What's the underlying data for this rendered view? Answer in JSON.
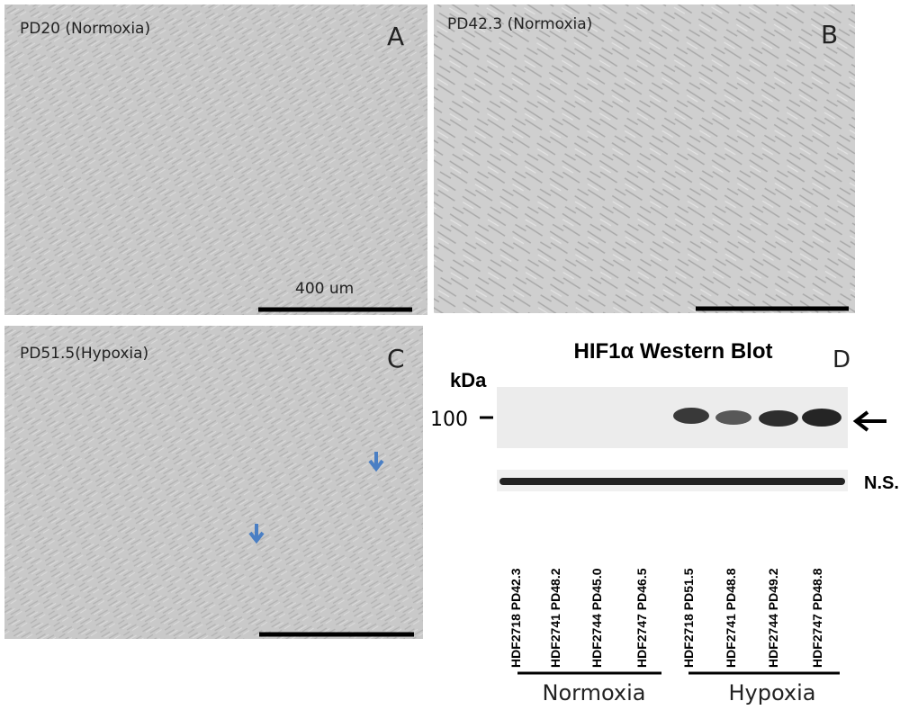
{
  "panels": [
    {
      "caption": "PD20 (Normoxia)",
      "letter": "A",
      "scale_label": "400 um"
    },
    {
      "caption": "PD42.3 (Normoxia)",
      "letter": "B"
    },
    {
      "caption": "PD51.5(Hypoxia)",
      "letter": "C"
    }
  ],
  "blot": {
    "title": "HIF1α Western Blot",
    "letter": "D",
    "unit": "kDa",
    "marker": "100",
    "ns_label": "N.S.",
    "lanes": [
      "HDF2718 PD42.3",
      "HDF2741 PD48.2",
      "HDF2744 PD45.0",
      "HDF2747 PD46.5",
      "HDF2718 PD51.5",
      "HDF2741 PD48.8",
      "HDF2744 PD49.2",
      "HDF2747 PD48.8"
    ],
    "groups": [
      "Normoxia",
      "Hypoxia"
    ]
  }
}
